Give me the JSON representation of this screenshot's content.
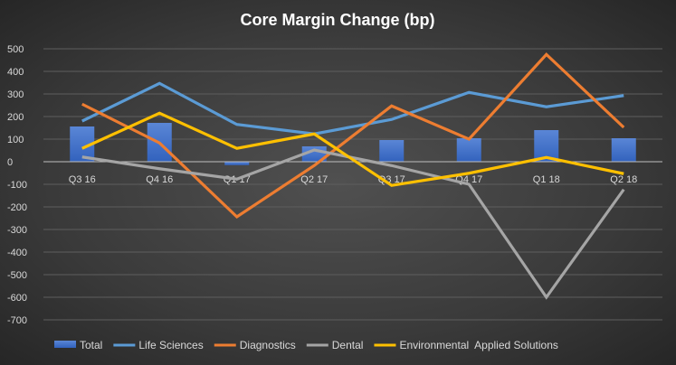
{
  "chart_data": {
    "type": "bar+line",
    "title": "Core Margin Change (bp)",
    "categories": [
      "Q3 16",
      "Q4 16",
      "Q1 17",
      "Q2 17",
      "Q3 17",
      "Q4 17",
      "Q1 18",
      "Q2 18"
    ],
    "ylim": [
      -700,
      500
    ],
    "yticks": [
      500,
      400,
      300,
      200,
      100,
      0,
      -100,
      -200,
      -300,
      -400,
      -500,
      -600,
      -700
    ],
    "grid": true,
    "legend_position": "bottom",
    "series": [
      {
        "name": "Total",
        "kind": "bar",
        "color": "#4472c4",
        "values": [
          156,
          172,
          -15,
          68,
          96,
          104,
          140,
          104
        ]
      },
      {
        "name": "Life Sciences",
        "kind": "line",
        "color": "#5b9bd5",
        "values": [
          180,
          347,
          165,
          123,
          187,
          307,
          243,
          293
        ]
      },
      {
        "name": "Diagnostics",
        "kind": "line",
        "color": "#ed7d31",
        "values": [
          255,
          83,
          -244,
          -17,
          247,
          100,
          475,
          152
        ]
      },
      {
        "name": "Dental",
        "kind": "line",
        "color": "#a5a5a5",
        "values": [
          21,
          -31,
          -77,
          52,
          -17,
          -100,
          -600,
          -123
        ]
      },
      {
        "name": "Environmental  Applied Solutions",
        "kind": "line",
        "color": "#ffc000",
        "values": [
          59,
          215,
          59,
          123,
          -105,
          -51,
          19,
          -53
        ]
      }
    ]
  }
}
